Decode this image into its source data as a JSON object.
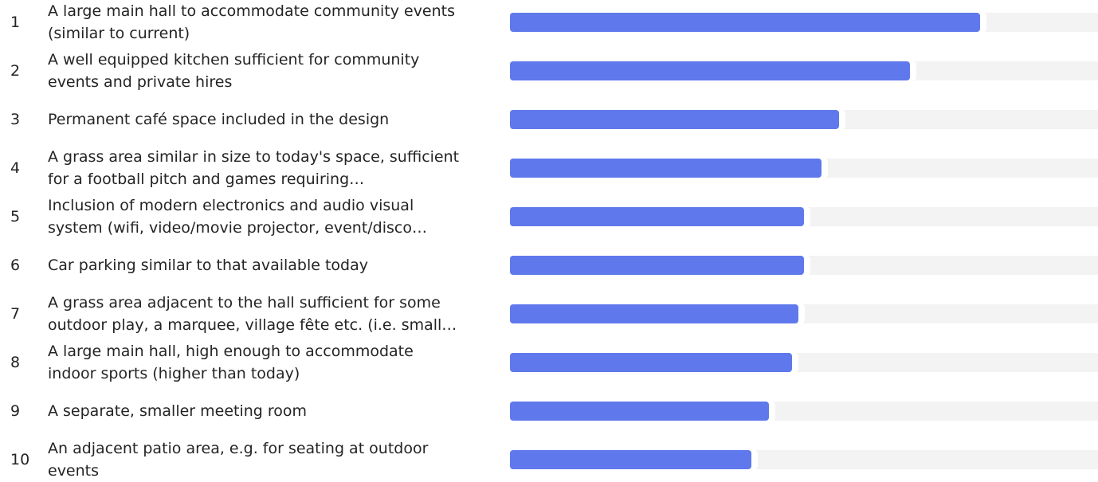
{
  "chart_data": {
    "type": "bar",
    "orientation": "horizontal",
    "colors": {
      "bar": "#5f79ec",
      "track": "#f3f3f3"
    },
    "value_range": [
      0,
      1
    ],
    "items": [
      {
        "rank": "1",
        "label": "A large main hall to accommodate community events (similar to current)",
        "value": 0.8
      },
      {
        "rank": "2",
        "label": "A well equipped kitchen sufficient for community events and private hires",
        "value": 0.68
      },
      {
        "rank": "3",
        "label": "Permanent café space included in the design",
        "value": 0.56
      },
      {
        "rank": "4",
        "label": "A grass area similar in size to today's space, sufficient for a football pitch and games requiring…",
        "value": 0.53
      },
      {
        "rank": "5",
        "label": "Inclusion of modern electronics and audio visual system (wifi, video/movie projector, event/disco…",
        "value": 0.5
      },
      {
        "rank": "6",
        "label": "Car parking similar to that available today",
        "value": 0.5
      },
      {
        "rank": "7",
        "label": "A grass area adjacent to the hall sufficient for some outdoor play, a marquee, village fête etc. (i.e. small…",
        "value": 0.49
      },
      {
        "rank": "8",
        "label": "A large main hall, high enough to accommodate indoor sports (higher than today)",
        "value": 0.48
      },
      {
        "rank": "9",
        "label": "A separate, smaller meeting room",
        "value": 0.44
      },
      {
        "rank": "10",
        "label": "An adjacent patio area, e.g. for seating at outdoor events",
        "value": 0.41
      }
    ]
  }
}
